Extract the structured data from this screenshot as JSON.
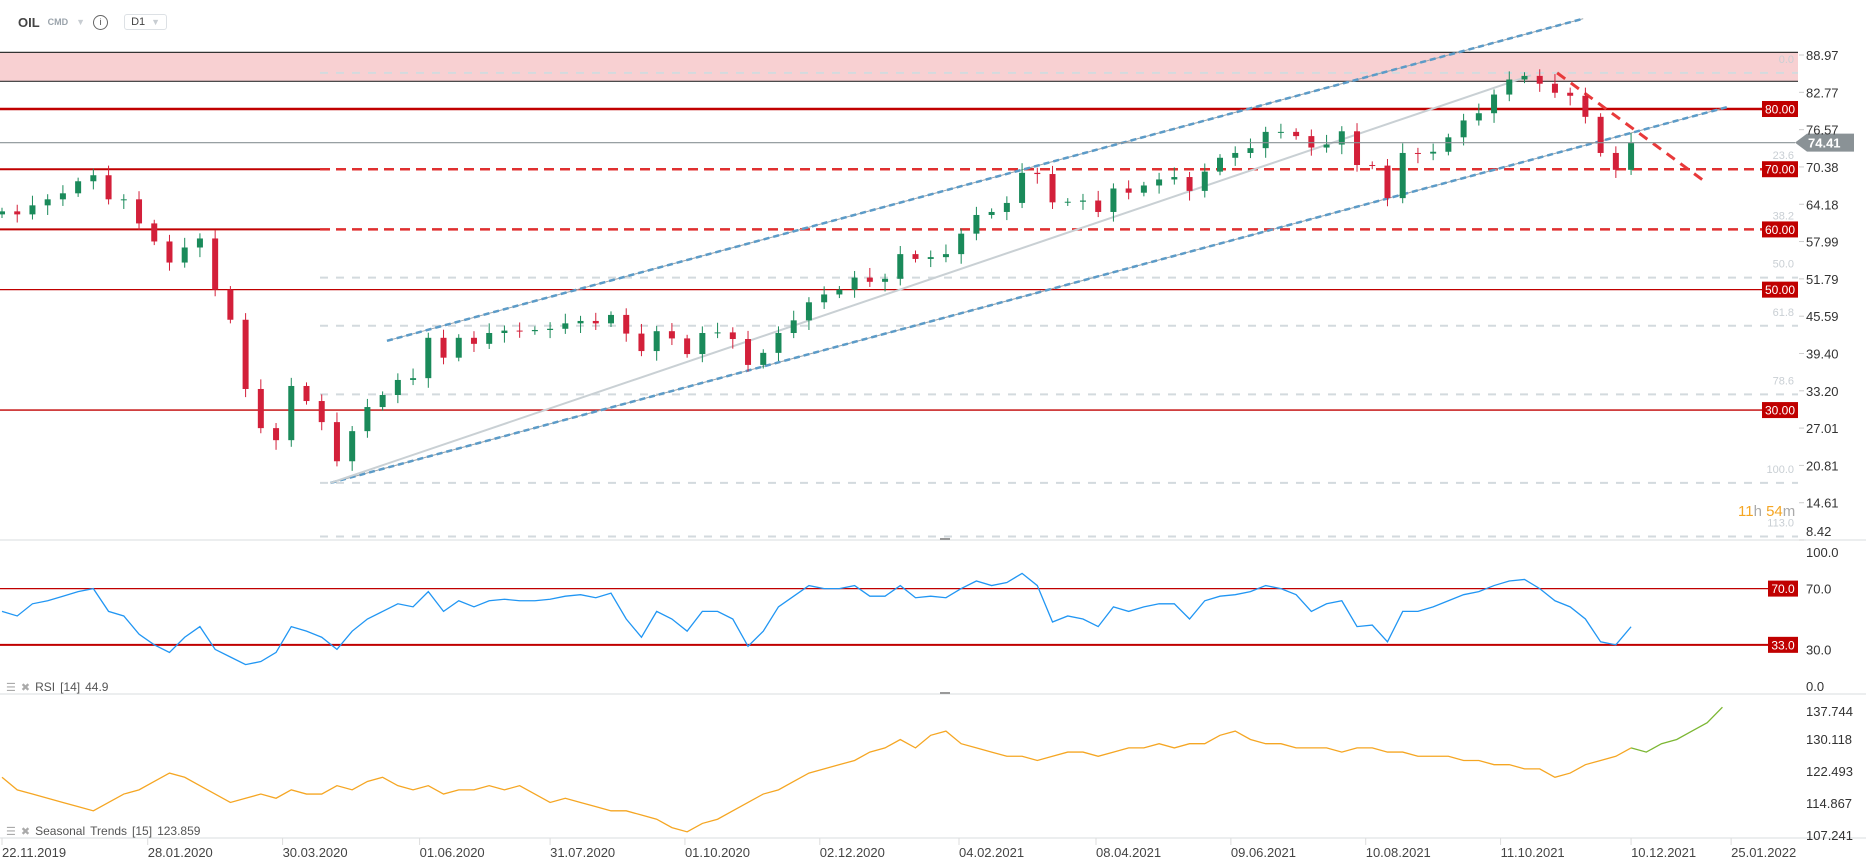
{
  "header": {
    "symbol": "OIL",
    "market": "CMD",
    "timeframe": "D1"
  },
  "countdown": {
    "hours": "11",
    "h": "h",
    "minutes": "54",
    "m": "m"
  },
  "colors": {
    "up": "#1a8a5a",
    "down": "#d3203a",
    "level": "#c00000",
    "zone": "#f8d0d2",
    "channel": "#5b9bc8",
    "rsi": "#2196f3",
    "seasonal": "#f5a623",
    "seasonal_forecast": "#7cb733",
    "price_line": "#8a9296"
  },
  "rsi_label": {
    "name": "RSI",
    "period": "[14]",
    "value": "44.9"
  },
  "seasonal_label": {
    "name": "Seasonal",
    "name2": "Trends",
    "period": "[15]",
    "value": "123.859"
  },
  "current_price": {
    "value": 74.41,
    "label": "74.41"
  },
  "chart_data": [
    {
      "type": "candlestick",
      "title": "OIL D1",
      "start_date": "2019-11-22",
      "step_days": 7,
      "closes": [
        63,
        62.5,
        64,
        65,
        66,
        68,
        69,
        65,
        65,
        61,
        58,
        54.5,
        57,
        58.5,
        50,
        45,
        33.5,
        27,
        25,
        34,
        31.5,
        28,
        21.5,
        26.5,
        30.5,
        32.5,
        35,
        35.3,
        42,
        38.7,
        42,
        41,
        42.8,
        43.2,
        43.1,
        43.3,
        43.5,
        44.4,
        44.8,
        44.4,
        45.8,
        42.7,
        39.8,
        43.1,
        41.9,
        39.3,
        42.8,
        42.9,
        41.8,
        37.5,
        39.5,
        42.8,
        44.9,
        47.9,
        49.2,
        50,
        52,
        51.3,
        51.8,
        55.9,
        55.1,
        55.4,
        55.9,
        59.3,
        62.4,
        62.9,
        64.4,
        69.4,
        69.2,
        64.5,
        64.6,
        64.8,
        62.9,
        66.8,
        66.1,
        67.3,
        68.3,
        68.7,
        66.4,
        69.6,
        71.9,
        72.7,
        73.5,
        76.2,
        76.2,
        75.5,
        73.6,
        74.1,
        76.3,
        70.7,
        70.6,
        65.2,
        72.7,
        72.6,
        72.9,
        75.3,
        78.1,
        79.3,
        82.4,
        84.9,
        85.5,
        84.2,
        82.7,
        82.2,
        78.7,
        72.7,
        69.9,
        74.41
      ],
      "ylim": [
        8.42,
        88.97
      ],
      "y_ticks": [
        "88.97",
        "82.77",
        "76.57",
        "70.38",
        "64.18",
        "57.99",
        "51.79",
        "45.59",
        "39.40",
        "33.20",
        "27.01",
        "20.81",
        "14.61",
        "8.42"
      ],
      "x_ticks": [
        "22.11.2019",
        "28.01.2020",
        "30.03.2020",
        "01.06.2020",
        "31.07.2020",
        "01.10.2020",
        "02.12.2020",
        "04.02.2021",
        "08.04.2021",
        "09.06.2021",
        "10.08.2021",
        "11.10.2021",
        "10.12.2021",
        "25.01.2022"
      ],
      "levels": [
        {
          "value": 80,
          "label": "80.00",
          "style": "solid-thick"
        },
        {
          "value": 70,
          "label": "70.00",
          "style": "solid-dashed"
        },
        {
          "value": 60,
          "label": "60.00",
          "style": "solid-dashed"
        },
        {
          "value": 50,
          "label": "50.00",
          "style": "solid"
        },
        {
          "value": 30,
          "label": "30.00",
          "style": "solid"
        }
      ],
      "resistance_zone": [
        84.6,
        89.4
      ],
      "fibonacci": [
        {
          "ratio": "0.0",
          "price": 86.0
        },
        {
          "ratio": "23.6",
          "price": 70.0
        },
        {
          "ratio": "38.2",
          "price": 60.0
        },
        {
          "ratio": "50.0",
          "price": 52.0
        },
        {
          "ratio": "61.8",
          "price": 44.0
        },
        {
          "ratio": "78.6",
          "price": 32.6
        },
        {
          "ratio": "100.0",
          "price": 17.9
        },
        {
          "ratio": "113.0",
          "price": 9.0
        }
      ],
      "trendlines": [
        {
          "kind": "channel-lower",
          "from": [
            "2020-04-21",
            17.9
          ],
          "to": [
            "2022-01-23",
            80.3
          ]
        },
        {
          "kind": "channel-upper",
          "from": [
            "2020-05-17",
            41.5
          ],
          "to": [
            "2021-11-18",
            95.0
          ]
        },
        {
          "kind": "gray",
          "from": [
            "2020-04-21",
            17.9
          ],
          "to": [
            "2021-10-25",
            85.6
          ]
        },
        {
          "kind": "red-dashed",
          "from": [
            "2021-11-06",
            86.0
          ],
          "to": [
            "2022-01-12",
            68.2
          ]
        }
      ]
    },
    {
      "type": "line",
      "title": "RSI [14]",
      "start_date": "2019-11-22",
      "step_days": 7,
      "values": [
        55,
        52,
        60,
        62,
        65,
        68,
        70,
        55,
        52,
        40,
        33,
        28,
        38,
        45,
        30,
        25,
        20,
        22,
        28,
        45,
        42,
        38,
        30,
        42,
        50,
        55,
        60,
        58,
        68,
        55,
        62,
        58,
        62,
        63,
        62,
        62,
        63,
        65,
        66,
        64,
        67,
        50,
        38,
        55,
        50,
        42,
        55,
        55,
        50,
        32,
        42,
        58,
        65,
        72,
        70,
        70,
        72,
        65,
        65,
        72,
        64,
        65,
        64,
        70,
        75,
        72,
        74,
        80,
        72,
        48,
        52,
        50,
        45,
        58,
        55,
        58,
        60,
        60,
        50,
        62,
        65,
        66,
        68,
        72,
        70,
        66,
        55,
        60,
        62,
        45,
        46,
        35,
        55,
        55,
        58,
        62,
        66,
        68,
        72,
        75,
        76,
        70,
        62,
        58,
        50,
        35,
        33,
        44.9
      ],
      "ylim": [
        0,
        100
      ],
      "y_ticks": [
        "100.0",
        "70.0",
        "30.0",
        "0.0"
      ],
      "levels": [
        {
          "value": 70,
          "label": "70.0"
        },
        {
          "value": 33,
          "label": "33.0"
        }
      ]
    },
    {
      "type": "line",
      "title": "Seasonal Trends [15]",
      "start_date": "2019-11-22",
      "step_days": 7,
      "forecast_start_index": 107,
      "values": [
        121,
        118,
        117,
        116,
        115,
        114,
        113,
        115,
        117,
        118,
        120,
        122,
        121,
        119,
        117,
        115,
        116,
        117,
        116,
        118,
        117,
        117,
        119,
        118,
        120,
        121,
        119,
        118,
        119,
        117,
        118,
        118,
        119,
        118,
        119,
        117,
        115,
        116,
        115,
        114,
        113,
        113,
        112,
        111,
        109,
        108,
        110,
        111,
        113,
        115,
        117,
        118,
        120,
        122,
        123,
        124,
        125,
        127,
        128,
        130,
        128,
        131,
        132,
        129,
        128,
        127,
        126,
        126,
        125,
        126,
        127,
        127,
        126,
        127,
        128,
        128,
        129,
        128,
        129,
        129,
        131,
        132,
        130,
        129,
        129,
        128,
        128,
        128,
        127,
        128,
        128,
        127,
        127,
        126,
        126,
        126,
        125,
        125,
        124,
        124,
        123,
        123,
        121,
        122,
        124,
        125,
        126,
        128,
        127,
        129,
        130,
        132,
        134,
        137.7
      ],
      "ylim": [
        107.241,
        137.744
      ],
      "y_ticks": [
        "137.744",
        "130.118",
        "122.493",
        "114.867",
        "107.241"
      ]
    }
  ]
}
